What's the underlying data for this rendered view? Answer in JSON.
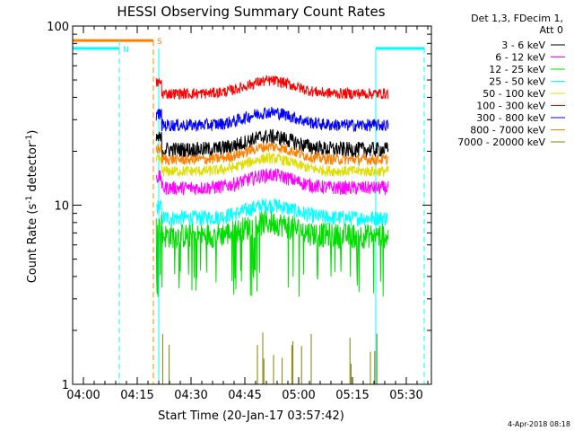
{
  "chart_data": {
    "type": "line",
    "title": "HESSI Observing Summary Count Rates",
    "xlabel": "Start Time (20-Jan-17 03:57:42)",
    "ylabel_main": "Count Rate (s",
    "ylabel_sup1": "-1",
    "ylabel_mid": " detector",
    "ylabel_sup2": "-1",
    "ylabel_end": ")",
    "y_scale": "log",
    "ylim": [
      1,
      100
    ],
    "xlim_minutes": [
      -3,
      97
    ],
    "x_ticks": [
      {
        "label": "04:00",
        "min": 0
      },
      {
        "label": "04:15",
        "min": 15
      },
      {
        "label": "04:30",
        "min": 30
      },
      {
        "label": "04:45",
        "min": 45
      },
      {
        "label": "05:00",
        "min": 60
      },
      {
        "label": "05:15",
        "min": 75
      },
      {
        "label": "05:30",
        "min": 90
      }
    ],
    "y_ticks": [
      {
        "label": "1",
        "value": 1
      },
      {
        "label": "10",
        "value": 10
      },
      {
        "label": "100",
        "value": 100
      }
    ],
    "legend_header": [
      "Det 1,3, FDecim 1,",
      "Att 0"
    ],
    "legend_position": "right",
    "series": [
      {
        "name": "3 - 6 keV",
        "color": "#000000",
        "level": 20.5,
        "noise": 0.1
      },
      {
        "name": "6 - 12 keV",
        "color": "#ff00ff",
        "level": 12.5,
        "noise": 0.09
      },
      {
        "name": "12 - 25 keV",
        "color": "#00dd00",
        "level": 6.8,
        "noise": 0.16
      },
      {
        "name": "25 - 50 keV",
        "color": "#00ffff",
        "level": 8.5,
        "noise": 0.1
      },
      {
        "name": "50 - 100 keV",
        "color": "#dddd00",
        "level": 15.5,
        "noise": 0.07
      },
      {
        "name": "100 - 300 keV",
        "color": "#ff0000",
        "level": 42,
        "noise": 0.07
      },
      {
        "name": "300 - 800 keV",
        "color": "#0000ff",
        "level": 28,
        "noise": 0.08
      },
      {
        "name": "800 - 7000 keV",
        "color": "#ff7f00",
        "level": 18,
        "noise": 0.07
      },
      {
        "name": "7000 - 20000 keV",
        "color": "#808000",
        "level": 1.3,
        "noise": 0.2
      }
    ],
    "data_interval_minutes": [
      20.3,
      85
    ],
    "bump_center_minutes": 52,
    "segments": [
      {
        "label": "N",
        "label_color": "#00ffff",
        "color": "#00ffff",
        "start_min": -3,
        "end_min": 10,
        "level": 75
      },
      {
        "label": "S",
        "label_color": "#ff7f00",
        "color": "#ff7f00",
        "start_min": -3,
        "end_min": 19.5,
        "level": 83
      },
      {
        "label": "",
        "label_color": "#00ffff",
        "color": "#00ffff",
        "start_min": 81.5,
        "end_min": 95,
        "level": 75
      }
    ],
    "vertical_markers": [
      {
        "min": 10,
        "color": "#00ffff",
        "style": "dashed"
      },
      {
        "min": 19.5,
        "color": "#ff7f00",
        "style": "dashed"
      },
      {
        "min": 21,
        "color": "#00ffff",
        "style": "solid"
      },
      {
        "min": 81.5,
        "color": "#00ffff",
        "style": "solid"
      },
      {
        "min": 95,
        "color": "#00ffff",
        "style": "dashed"
      }
    ]
  },
  "footer_date": "4-Apr-2018 08:18"
}
